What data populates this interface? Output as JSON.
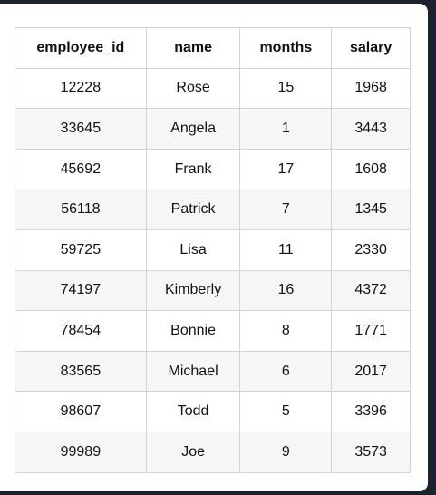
{
  "table": {
    "headers": [
      "employee_id",
      "name",
      "months",
      "salary"
    ],
    "rows": [
      [
        "12228",
        "Rose",
        "15",
        "1968"
      ],
      [
        "33645",
        "Angela",
        "1",
        "3443"
      ],
      [
        "45692",
        "Frank",
        "17",
        "1608"
      ],
      [
        "56118",
        "Patrick",
        "7",
        "1345"
      ],
      [
        "59725",
        "Lisa",
        "11",
        "2330"
      ],
      [
        "74197",
        "Kimberly",
        "16",
        "4372"
      ],
      [
        "78454",
        "Bonnie",
        "8",
        "1771"
      ],
      [
        "83565",
        "Michael",
        "6",
        "2017"
      ],
      [
        "98607",
        "Todd",
        "5",
        "3396"
      ],
      [
        "99989",
        "Joe",
        "9",
        "3573"
      ]
    ]
  }
}
